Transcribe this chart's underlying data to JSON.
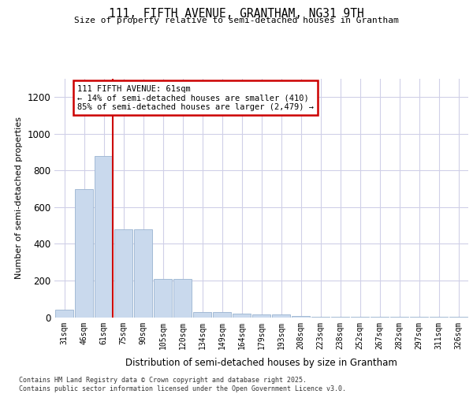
{
  "title_line1": "111, FIFTH AVENUE, GRANTHAM, NG31 9TH",
  "title_line2": "Size of property relative to semi-detached houses in Grantham",
  "xlabel": "Distribution of semi-detached houses by size in Grantham",
  "ylabel": "Number of semi-detached properties",
  "categories": [
    "31sqm",
    "46sqm",
    "61sqm",
    "75sqm",
    "90sqm",
    "105sqm",
    "120sqm",
    "134sqm",
    "149sqm",
    "164sqm",
    "179sqm",
    "193sqm",
    "208sqm",
    "223sqm",
    "238sqm",
    "252sqm",
    "267sqm",
    "282sqm",
    "297sqm",
    "311sqm",
    "326sqm"
  ],
  "values": [
    40,
    700,
    880,
    480,
    480,
    210,
    210,
    30,
    30,
    20,
    15,
    15,
    5,
    2,
    2,
    2,
    2,
    2,
    2,
    1,
    2
  ],
  "bar_color": "#c9d9ed",
  "bar_edge_color": "#9ab4d0",
  "grid_color": "#d0d0e8",
  "property_bar_index": 2,
  "property_label": "111 FIFTH AVENUE: 61sqm",
  "pct_smaller_text": "← 14% of semi-detached houses are smaller (410)",
  "pct_larger_text": "85% of semi-detached houses are larger (2,479) →",
  "annotation_edge_color": "#cc0000",
  "property_line_color": "#cc0000",
  "ylim": [
    0,
    1300
  ],
  "yticks": [
    0,
    200,
    400,
    600,
    800,
    1000,
    1200
  ],
  "footnote1": "Contains HM Land Registry data © Crown copyright and database right 2025.",
  "footnote2": "Contains public sector information licensed under the Open Government Licence v3.0.",
  "fig_bg": "#ffffff",
  "ax_bg": "#ffffff"
}
